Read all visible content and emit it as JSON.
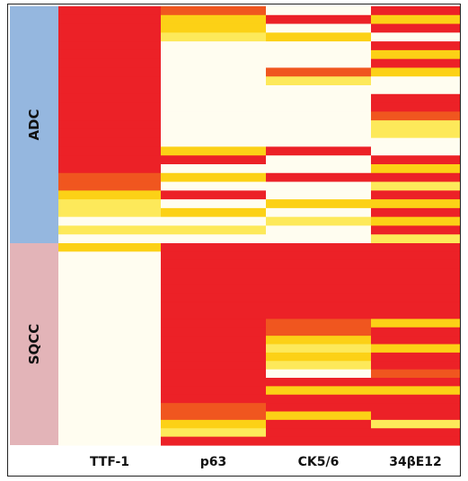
{
  "colors": {
    "high": "#ec2127",
    "mid_high": "#f0561f",
    "mid": "#f79a1e",
    "low_mid": "#fcd116",
    "low": "#fde95a",
    "none": "#fffdf0",
    "adc_band": "#95b7df",
    "sqcc_band": "#e3b4b8"
  },
  "chart_data": {
    "type": "heatmap",
    "columns": [
      "TTF-1",
      "p63",
      "CK5/6",
      "34βE12"
    ],
    "groups": [
      {
        "label": "ADC",
        "color": "#95b7df"
      },
      {
        "label": "SQCC",
        "color": "#e3b4b8"
      }
    ],
    "value_scale": "0 = no expression (white) … 4 = strong expression (red)",
    "rows": {
      "ADC": [
        {
          "TTF-1": 4,
          "p63": 3,
          "CK5/6": 0,
          "34βE12": 4
        },
        {
          "TTF-1": 4,
          "p63": 2,
          "CK5/6": 4,
          "34βE12": 2
        },
        {
          "TTF-1": 4,
          "p63": 2,
          "CK5/6": 0,
          "34βE12": 4
        },
        {
          "TTF-1": 4,
          "p63": 1,
          "CK5/6": 2,
          "34βE12": 0
        },
        {
          "TTF-1": 4,
          "p63": 0,
          "CK5/6": 0,
          "34βE12": 4
        },
        {
          "TTF-1": 4,
          "p63": 0,
          "CK5/6": 0,
          "34βE12": 2
        },
        {
          "TTF-1": 4,
          "p63": 0,
          "CK5/6": 0,
          "34βE12": 4
        },
        {
          "TTF-1": 4,
          "p63": 0,
          "CK5/6": 3,
          "34βE12": 2
        },
        {
          "TTF-1": 4,
          "p63": 0,
          "CK5/6": 1,
          "34βE12": 0
        },
        {
          "TTF-1": 4,
          "p63": 0,
          "CK5/6": 0,
          "34βE12": 0
        },
        {
          "TTF-1": 4,
          "p63": 0,
          "CK5/6": 0,
          "34βE12": 4
        },
        {
          "TTF-1": 4,
          "p63": 0,
          "CK5/6": 0,
          "34βE12": 4
        },
        {
          "TTF-1": 4,
          "p63": 0,
          "CK5/6": 0,
          "34βE12": 3
        },
        {
          "TTF-1": 4,
          "p63": 0,
          "CK5/6": 0,
          "34βE12": 1
        },
        {
          "TTF-1": 4,
          "p63": 0,
          "CK5/6": 0,
          "34βE12": 1
        },
        {
          "TTF-1": 4,
          "p63": 0,
          "CK5/6": 0,
          "34βE12": 0
        },
        {
          "TTF-1": 4,
          "p63": 2,
          "CK5/6": 4,
          "34βE12": 0
        },
        {
          "TTF-1": 4,
          "p63": 4,
          "CK5/6": 0,
          "34βE12": 4
        },
        {
          "TTF-1": 4,
          "p63": 0,
          "CK5/6": 0,
          "34βE12": 2
        },
        {
          "TTF-1": 3,
          "p63": 2,
          "CK5/6": 4,
          "34βE12": 4
        },
        {
          "TTF-1": 3,
          "p63": 0,
          "CK5/6": 0,
          "34βE12": 1
        },
        {
          "TTF-1": 2,
          "p63": 4,
          "CK5/6": 0,
          "34βE12": 4
        },
        {
          "TTF-1": 1,
          "p63": 0,
          "CK5/6": 2,
          "34βE12": 2
        },
        {
          "TTF-1": 1,
          "p63": 2,
          "CK5/6": 0,
          "34βE12": 4
        },
        {
          "TTF-1": 0,
          "p63": 0,
          "CK5/6": 1,
          "34βE12": 2
        },
        {
          "TTF-1": 1,
          "p63": 1,
          "CK5/6": 0,
          "34βE12": 4
        },
        {
          "TTF-1": 0,
          "p63": 0,
          "CK5/6": 0,
          "34βE12": 1
        }
      ],
      "SQCC": [
        {
          "TTF-1": 2,
          "p63": 4,
          "CK5/6": 4,
          "34βE12": 4
        },
        {
          "TTF-1": 0,
          "p63": 4,
          "CK5/6": 4,
          "34βE12": 4
        },
        {
          "TTF-1": 0,
          "p63": 4,
          "CK5/6": 4,
          "34βE12": 4
        },
        {
          "TTF-1": 0,
          "p63": 4,
          "CK5/6": 4,
          "34βE12": 4
        },
        {
          "TTF-1": 0,
          "p63": 4,
          "CK5/6": 4,
          "34βE12": 4
        },
        {
          "TTF-1": 0,
          "p63": 4,
          "CK5/6": 4,
          "34βE12": 4
        },
        {
          "TTF-1": 0,
          "p63": 4,
          "CK5/6": 4,
          "34βE12": 4
        },
        {
          "TTF-1": 0,
          "p63": 4,
          "CK5/6": 4,
          "34βE12": 4
        },
        {
          "TTF-1": 0,
          "p63": 4,
          "CK5/6": 4,
          "34βE12": 4
        },
        {
          "TTF-1": 0,
          "p63": 4,
          "CK5/6": 3,
          "34βE12": 2
        },
        {
          "TTF-1": 0,
          "p63": 4,
          "CK5/6": 3,
          "34βE12": 4
        },
        {
          "TTF-1": 0,
          "p63": 4,
          "CK5/6": 2,
          "34βE12": 4
        },
        {
          "TTF-1": 0,
          "p63": 4,
          "CK5/6": 1,
          "34βE12": 2
        },
        {
          "TTF-1": 0,
          "p63": 4,
          "CK5/6": 2,
          "34βE12": 4
        },
        {
          "TTF-1": 0,
          "p63": 4,
          "CK5/6": 1,
          "34βE12": 4
        },
        {
          "TTF-1": 0,
          "p63": 4,
          "CK5/6": 0,
          "34βE12": 3
        },
        {
          "TTF-1": 0,
          "p63": 4,
          "CK5/6": 4,
          "34βE12": 4
        },
        {
          "TTF-1": 0,
          "p63": 4,
          "CK5/6": 2,
          "34βE12": 2
        },
        {
          "TTF-1": 0,
          "p63": 4,
          "CK5/6": 4,
          "34βE12": 4
        },
        {
          "TTF-1": 0,
          "p63": 3,
          "CK5/6": 4,
          "34βE12": 4
        },
        {
          "TTF-1": 0,
          "p63": 3,
          "CK5/6": 2,
          "34βE12": 4
        },
        {
          "TTF-1": 0,
          "p63": 2,
          "CK5/6": 4,
          "34βE12": 1
        },
        {
          "TTF-1": 0,
          "p63": 1,
          "CK5/6": 4,
          "34βE12": 4
        },
        {
          "TTF-1": 0,
          "p63": 4,
          "CK5/6": 4,
          "34βE12": 4
        }
      ]
    },
    "title": "",
    "legend": false,
    "grid": false
  }
}
